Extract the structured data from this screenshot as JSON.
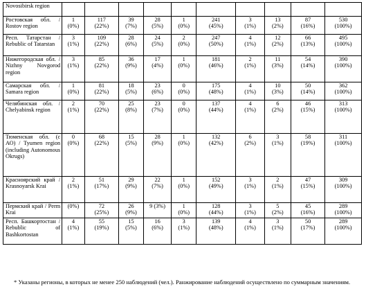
{
  "table": {
    "rows": [
      {
        "region": "Novosibirsk region",
        "cells": []
      },
      {
        "region": "Ростовская обл. / Rostov region",
        "cells": [
          [
            "1",
            "(0%)"
          ],
          [
            "117",
            "(22%)"
          ],
          [
            "39",
            "(7%)"
          ],
          [
            "28",
            "(5%)"
          ],
          [
            "1",
            "(0%)"
          ],
          [
            "241",
            "(45%)"
          ],
          [
            "3",
            "(1%)"
          ],
          [
            "13",
            "(2%)"
          ],
          [
            "87",
            "(16%)"
          ],
          [
            "530",
            "(100%)"
          ]
        ]
      },
      {
        "region": "Респ. Татарстан / Rebublic of Tatarstan",
        "cells": [
          [
            "3",
            "(1%)"
          ],
          [
            "109",
            "(22%)"
          ],
          [
            "28",
            "(6%)"
          ],
          [
            "24",
            "(5%)"
          ],
          [
            "2",
            "(0%)"
          ],
          [
            "247",
            "(50%)"
          ],
          [
            "4",
            "(1%)"
          ],
          [
            "12",
            "(2%)"
          ],
          [
            "66",
            "(13%)"
          ],
          [
            "495",
            "(100%)"
          ]
        ]
      },
      {
        "region": "Нижегородская обл. / Nizhny Novgorod region",
        "cells": [
          [
            "3",
            "(1%)"
          ],
          [
            "85",
            "(22%)"
          ],
          [
            "36",
            "(9%)"
          ],
          [
            "17",
            "(4%)"
          ],
          [
            "1",
            "(0%)"
          ],
          [
            "181",
            "(46%)"
          ],
          [
            "2",
            "(1%)"
          ],
          [
            "11",
            "(3%)"
          ],
          [
            "54",
            "(14%)"
          ],
          [
            "390",
            "(100%)"
          ]
        ]
      },
      {
        "region": "Самарская обл. / Samara region",
        "cells": [
          [
            "1",
            "(0%)"
          ],
          [
            "81",
            "(22%)"
          ],
          [
            "18",
            "(5%)"
          ],
          [
            "23",
            "(6%)"
          ],
          [
            "0",
            "(0%)"
          ],
          [
            "175",
            "(48%)"
          ],
          [
            "4",
            "(1%)"
          ],
          [
            "10",
            "(3%)"
          ],
          [
            "50",
            "(14%)"
          ],
          [
            "362",
            "(100%)"
          ]
        ]
      },
      {
        "region": "Челябинская обл. / Chelyabinsk region",
        "cells": [
          [
            "2",
            "(1%)"
          ],
          [
            "70",
            "(22%)"
          ],
          [
            "25",
            "(8%)"
          ],
          [
            "23",
            "(7%)"
          ],
          [
            "0",
            "(0%)"
          ],
          [
            "137",
            "(44%)"
          ],
          [
            "4",
            "(1%)"
          ],
          [
            "6",
            "(2%)"
          ],
          [
            "46",
            "(15%)"
          ],
          [
            "313",
            "(100%)"
          ]
        ]
      },
      {
        "region": "Тюменская обл. (с АО) / Tyumen region (including Autonomous Okrugs)",
        "cells": [
          [
            "0",
            "(0%)"
          ],
          [
            "68",
            "(22%)"
          ],
          [
            "15",
            "(5%)"
          ],
          [
            "28",
            "(9%)"
          ],
          [
            "1",
            "(0%)"
          ],
          [
            "132",
            "(42%)"
          ],
          [
            "6",
            "(2%)"
          ],
          [
            "3",
            "(1%)"
          ],
          [
            "58",
            "(19%)"
          ],
          [
            "311",
            "(100%)"
          ]
        ]
      },
      {
        "region": "Красноярский край / Krasnoyarsk Krai",
        "cells": [
          [
            "2",
            "(1%)"
          ],
          [
            "51",
            "(17%)"
          ],
          [
            "29",
            "(9%)"
          ],
          [
            "22",
            "(7%)"
          ],
          [
            "1",
            "(0%)"
          ],
          [
            "152",
            "(49%)"
          ],
          [
            "3",
            "(1%)"
          ],
          [
            "2",
            "(1%)"
          ],
          [
            "47",
            "(15%)"
          ],
          [
            "309",
            "(100%)"
          ]
        ]
      },
      {
        "region": "Пермский край / Perm Krai",
        "cells": [
          [
            "",
            "(0%)"
          ],
          [
            "72",
            "(25%)"
          ],
          [
            "26",
            "(9%)"
          ],
          [
            "9 (3%)",
            ""
          ],
          [
            "1",
            "(0%)"
          ],
          [
            "128",
            "(44%)"
          ],
          [
            "3",
            "(1%)"
          ],
          [
            "5",
            "(2%)"
          ],
          [
            "45",
            "(16%)"
          ],
          [
            "289",
            "(100%)"
          ]
        ]
      },
      {
        "region": "Респ. Башкортостан / Rebublic of Bashkortostan",
        "cells": [
          [
            "4",
            "(1%)"
          ],
          [
            "55",
            "(19%)"
          ],
          [
            "15",
            "(5%)"
          ],
          [
            "16",
            "(6%)"
          ],
          [
            "3",
            "(1%)"
          ],
          [
            "139",
            "(48%)"
          ],
          [
            "4",
            "(1%)"
          ],
          [
            "3",
            "(1%)"
          ],
          [
            "50",
            "(17%)"
          ],
          [
            "289",
            "(100%)"
          ]
        ]
      }
    ]
  },
  "footnote": "* Указаны регионы, в которых не менее 250 наблюдений (чел.). Ранжирование наблюдений осуществлено по суммарным значениям."
}
